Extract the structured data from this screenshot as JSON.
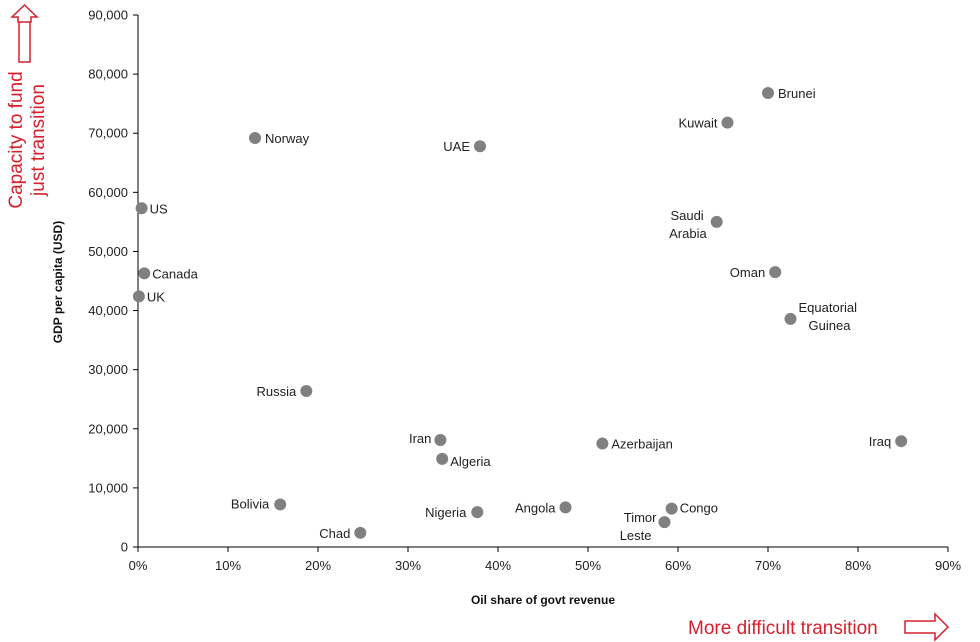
{
  "chart_data": {
    "type": "scatter",
    "xlabel": "Oil share of govt revenue",
    "ylabel": "GDP per capita  (USD)",
    "xlim": [
      0,
      0.9
    ],
    "ylim": [
      0,
      90000
    ],
    "x_ticks": [
      "0%",
      "10%",
      "20%",
      "30%",
      "40%",
      "50%",
      "60%",
      "70%",
      "80%",
      "90%"
    ],
    "y_ticks": [
      "0",
      "10,000",
      "20,000",
      "30,000",
      "40,000",
      "50,000",
      "60,000",
      "70,000",
      "80,000",
      "90,000"
    ],
    "grid": false,
    "marker_color": "#808080",
    "annotation_color": "#d6202c",
    "annotations": {
      "y_arrow": [
        "Capacity to fund",
        "just transition"
      ],
      "x_arrow": "More difficult transition"
    },
    "points": [
      {
        "label": "Brunei",
        "x": 0.7,
        "y": 76800
      },
      {
        "label": "Kuwait",
        "x": 0.655,
        "y": 71800
      },
      {
        "label": "Norway",
        "x": 0.13,
        "y": 69200
      },
      {
        "label": "UAE",
        "x": 0.38,
        "y": 67800
      },
      {
        "label": "US",
        "x": 0.004,
        "y": 57300
      },
      {
        "label": "Saudi Arabia",
        "lines": [
          "Saudi",
          "Arabia"
        ],
        "x": 0.643,
        "y": 55000
      },
      {
        "label": "Oman",
        "x": 0.708,
        "y": 46500
      },
      {
        "label": "Canada",
        "x": 0.007,
        "y": 46300
      },
      {
        "label": "UK",
        "x": 0.001,
        "y": 42400
      },
      {
        "label": "Equatorial Guinea",
        "lines": [
          "Equatorial",
          "Guinea"
        ],
        "x": 0.725,
        "y": 38600
      },
      {
        "label": "Russia",
        "x": 0.187,
        "y": 26400
      },
      {
        "label": "Iran",
        "x": 0.336,
        "y": 18100
      },
      {
        "label": "Iraq",
        "x": 0.848,
        "y": 17900
      },
      {
        "label": "Azerbaijan",
        "x": 0.516,
        "y": 17500
      },
      {
        "label": "Algeria",
        "x": 0.338,
        "y": 14900
      },
      {
        "label": "Bolivia",
        "x": 0.158,
        "y": 7200
      },
      {
        "label": "Angola",
        "x": 0.475,
        "y": 6700
      },
      {
        "label": "Congo",
        "x": 0.593,
        "y": 6500
      },
      {
        "label": "Nigeria",
        "x": 0.377,
        "y": 5900
      },
      {
        "label": "Timor Leste",
        "lines": [
          "Timor",
          "Leste"
        ],
        "x": 0.585,
        "y": 4200
      },
      {
        "label": "Chad",
        "x": 0.247,
        "y": 2400
      }
    ]
  }
}
